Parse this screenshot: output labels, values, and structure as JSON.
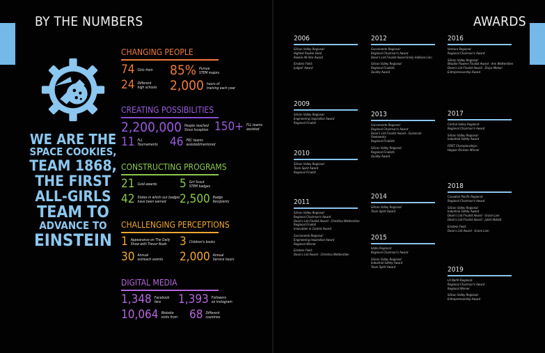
{
  "colors": {
    "background": "#020202",
    "accent_blue": "#74b9e8",
    "tagline": "#8cc7ef",
    "changing": "#ee7d3c",
    "creating": "#9a5cde",
    "constructing": "#8cc94c",
    "challenging": "#f0a836",
    "digital": "#b469da"
  },
  "left_page": {
    "header": "BY THE NUMBERS",
    "logo_icon": "space-cookie-gear-rocket",
    "tagline": [
      "WE ARE THE",
      "SPACE COOKIES,",
      "TEAM 1868,",
      "THE FIRST",
      "ALL-GIRLS",
      "TEAM TO",
      "ADVANCE TO",
      "EINSTEIN"
    ],
    "sections": [
      {
        "title": "CHANGING PEOPLE",
        "stats": [
          {
            "value": "74",
            "label": [
              "Girls from"
            ]
          },
          {
            "value": "85%",
            "label": [
              "Pursue",
              "STEM majors"
            ]
          },
          {
            "value": "24",
            "label": [
              "Different",
              "high schools"
            ]
          },
          {
            "value": "2,000",
            "label": [
              "hours of",
              "training each year"
            ]
          }
        ]
      },
      {
        "title": "CREATING POSSIBILITIES",
        "stats": [
          {
            "value": "2,200,000",
            "label": [
              "People reached",
              "Since Inception"
            ]
          },
          {
            "value": "150+",
            "label": [
              "FLL teams",
              "assisted"
            ]
          },
          {
            "value": "11",
            "label": [
              "FLL",
              "Tournaments"
            ]
          },
          {
            "value": "46",
            "label": [
              "FRC teams",
              "assisted/mentored"
            ]
          }
        ]
      },
      {
        "title": "CONSTRUCTING PROGRAMS",
        "stats": [
          {
            "value": "21",
            "label": [
              "Gold awards"
            ]
          },
          {
            "value": "5",
            "label": [
              "Girl Scout",
              "STEM badges"
            ]
          },
          {
            "value": "42",
            "label": [
              "States in which our badges",
              "have been earned"
            ]
          },
          {
            "value": "2,500",
            "label": [
              "Badge",
              "Recipients"
            ]
          }
        ]
      },
      {
        "title": "CHALLENGING PERCEPTIONS",
        "stats": [
          {
            "value": "1",
            "label": [
              "Appearance on The Daily",
              "Show with Trevor Noah"
            ]
          },
          {
            "value": "3",
            "label": [
              "Children's books"
            ]
          },
          {
            "value": "30",
            "label": [
              "Annual",
              "outreach events"
            ]
          },
          {
            "value": "2,000",
            "label": [
              "Annual",
              "Service hours"
            ]
          }
        ]
      },
      {
        "title": "DIGITAL MEDIA",
        "stats": [
          {
            "value": "1,348",
            "label": [
              "Facebook",
              "fans"
            ]
          },
          {
            "value": "1,393",
            "label": [
              "Followers",
              "on Instagram"
            ]
          },
          {
            "value": "10,064",
            "label": [
              "Website",
              "visits from"
            ]
          },
          {
            "value": "68",
            "label": [
              "Different",
              "countries"
            ]
          }
        ]
      }
    ]
  },
  "right_page": {
    "header": "AWARDS",
    "years": [
      {
        "year": "2006",
        "events": [
          [
            "Silicon Valley Regional:",
            "Highest Rookie Seed",
            "Rookie All-Star Award"
          ],
          [
            "Einstein Field:",
            "Judges' Award"
          ]
        ]
      },
      {
        "year": "2009",
        "events": [
          [
            "Silicon Valley Regional:",
            "Engineering Inspiration Award",
            "Regional Finalist"
          ]
        ]
      },
      {
        "year": "2010",
        "events": [
          [
            "Silicon Valley Regional:",
            "Team Spirit Award",
            "Regional Finalist"
          ]
        ]
      },
      {
        "year": "2011",
        "events": [
          [
            "Silicon Valley Regional:",
            "Regional Chairman's Award",
            "Dean's List Finalist Award - Christina Wetterstien",
            "Regional Finalist",
            "Innovation in Control Award"
          ],
          [
            "Sacramento Regional:",
            "Engineering Inspiration Award",
            "Regional Winner"
          ],
          [
            "Einstein Field:",
            "Dean's List Award - Christina Wetterstien"
          ]
        ]
      },
      {
        "year": "2012",
        "events": [
          [
            "Sacramento Regional:",
            "Regional Chairman's Award",
            "Dean's List Finalist Award Emily Hallisen-Linn"
          ],
          [
            "Silicon Valley Regional:",
            "Regional Finalists",
            "Quality Award"
          ]
        ]
      },
      {
        "year": "2013",
        "events": [
          [
            "Sacramento Regional:",
            "Regional Chairman's Award",
            "Dean's List Finalist Award - Suzannah",
            "Osekowsky",
            "Regional Finalists"
          ],
          [
            "Silicon Valley Regional:",
            "Regional Finalists",
            "Quality Award"
          ]
        ]
      },
      {
        "year": "2014",
        "events": [
          [
            "Silicon Valley Regional:",
            "Team Spirit Award"
          ]
        ]
      },
      {
        "year": "2015",
        "events": [
          [
            "Idaho Regional:",
            "Regional Chairman's Award"
          ],
          [
            "Silicon Valley Regional:",
            "Industrial Safety Award",
            "Team Spirit Award"
          ]
        ]
      },
      {
        "year": "2016",
        "events": [
          [
            "Ventura Regional:",
            "Regional Chairman's Award"
          ],
          [
            "Silicon Valley Regional:",
            "Woodie Flowers Finalist Award - Ann Wetterstien",
            "Dean's List Finalist Award - Divya Mohan",
            "Entrepreneurship Award"
          ]
        ]
      },
      {
        "year": "2017",
        "events": [
          [
            "Central Valley Regional:",
            "Regional Chairman's Award"
          ],
          [
            "Silicon Valley Regional:",
            "Industrial Safety Award"
          ],
          [
            "FIRST Championships:",
            "Hopper Division Winner"
          ]
        ]
      },
      {
        "year": "2018",
        "events": [
          [
            "Canadian Pacific Regional:",
            "Regional Chairman's Award"
          ],
          [
            "Silicon Valley Regional:",
            "Industrial Safety Award",
            "Dean's List Finalist Award - Grace Lam",
            "Dean's List Finalist Award - Juliet Abbott"
          ],
          [
            "Einstein Field:",
            "Dean's List Award - Grace Lam"
          ]
        ]
      },
      {
        "year": "2019",
        "events": [
          [
            "LA North Regional:",
            "Regional Chairman's Award",
            "Regional Winner"
          ],
          [
            "Silicon Valley Regional:",
            "Entrepreneurship Award"
          ]
        ]
      }
    ]
  }
}
